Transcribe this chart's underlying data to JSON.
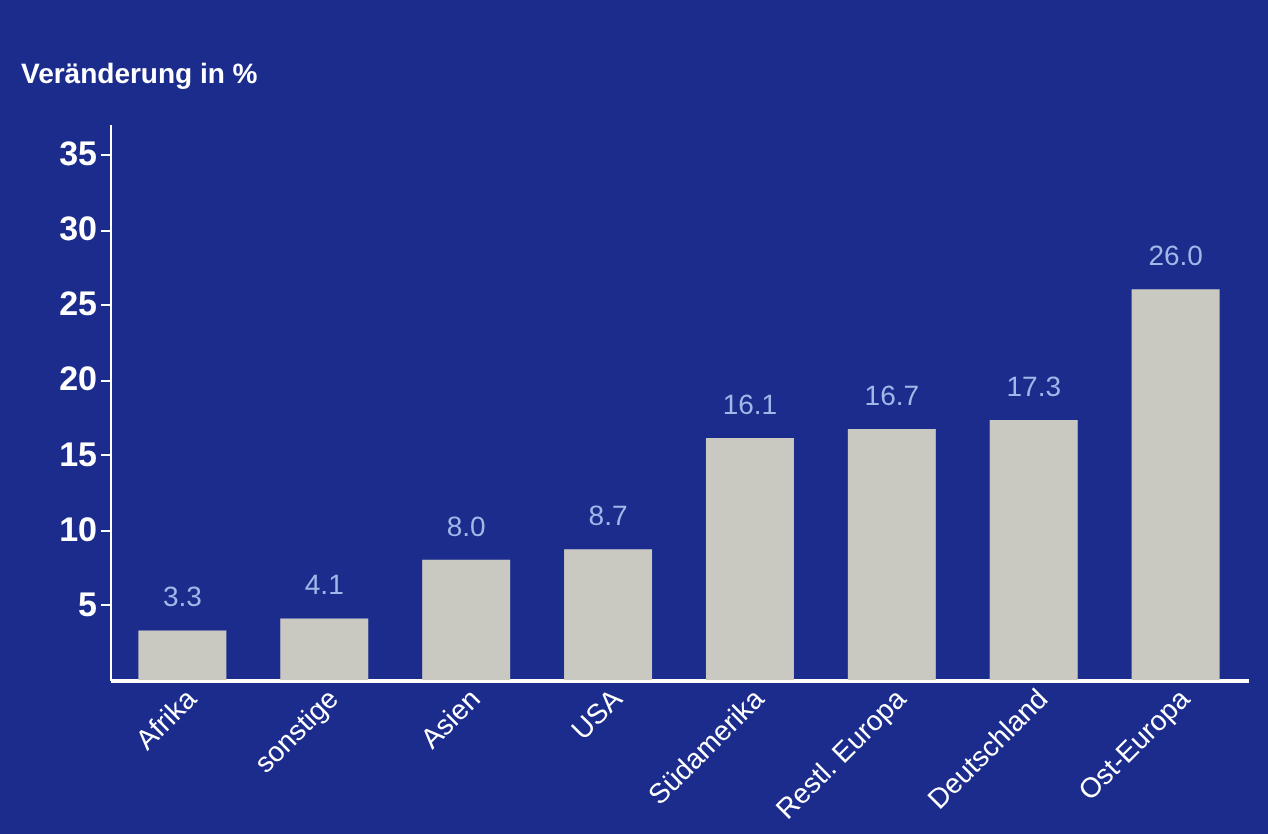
{
  "chart_data": {
    "type": "bar",
    "ylabel": "Veränderung in %",
    "categories": [
      "Afrika",
      "sonstige",
      "Asien",
      "USA",
      "Südamerika",
      "Restl. Europa",
      "Deutschland",
      "Ost-Europa"
    ],
    "values": [
      3.3,
      4.1,
      8.0,
      8.7,
      16.1,
      16.7,
      17.3,
      26.0
    ],
    "color": "#c9c9c2",
    "ylim": [
      0,
      37
    ],
    "yticks": [
      5,
      10,
      15,
      20,
      25,
      30,
      35
    ],
    "grid": false,
    "value_labels": [
      "3.3",
      "4.1",
      "8.0",
      "8.7",
      "16.1",
      "16.7",
      "17.3",
      "26.0"
    ]
  }
}
